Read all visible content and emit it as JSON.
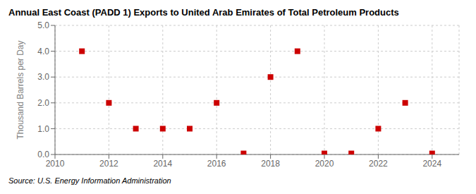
{
  "chart_data": {
    "type": "scatter",
    "title": "Annual East Coast (PADD 1) Exports to United Arab Emirates of Total Petroleum Products",
    "ylabel": "Thousand Barrels per Day",
    "annotations": [
      "Source: U.S. Energy Information Administration"
    ],
    "x": [
      2011,
      2012,
      2013,
      2014,
      2015,
      2016,
      2017,
      2018,
      2019,
      2020,
      2021,
      2022,
      2023,
      2024
    ],
    "values": [
      4.0,
      2.0,
      1.0,
      1.0,
      1.0,
      2.0,
      0.04,
      3.0,
      4.0,
      0.04,
      0.04,
      1.0,
      2.0,
      0.04
    ],
    "color": "#cc0000",
    "marker": "square",
    "xlim": [
      2010,
      2025
    ],
    "xticks": [
      2010,
      2012,
      2014,
      2016,
      2018,
      2020,
      2022,
      2024
    ],
    "ylim": [
      0.0,
      5.0
    ],
    "yticks": [
      {
        "value": 0.0,
        "label": "0.0"
      },
      {
        "value": 1.0,
        "label": "1.0"
      },
      {
        "value": 2.0,
        "label": "2.0"
      },
      {
        "value": 3.0,
        "label": "3.0"
      },
      {
        "value": 4.0,
        "label": "4.0"
      },
      {
        "value": 5.0,
        "label": "5.0"
      }
    ],
    "grid": true
  }
}
